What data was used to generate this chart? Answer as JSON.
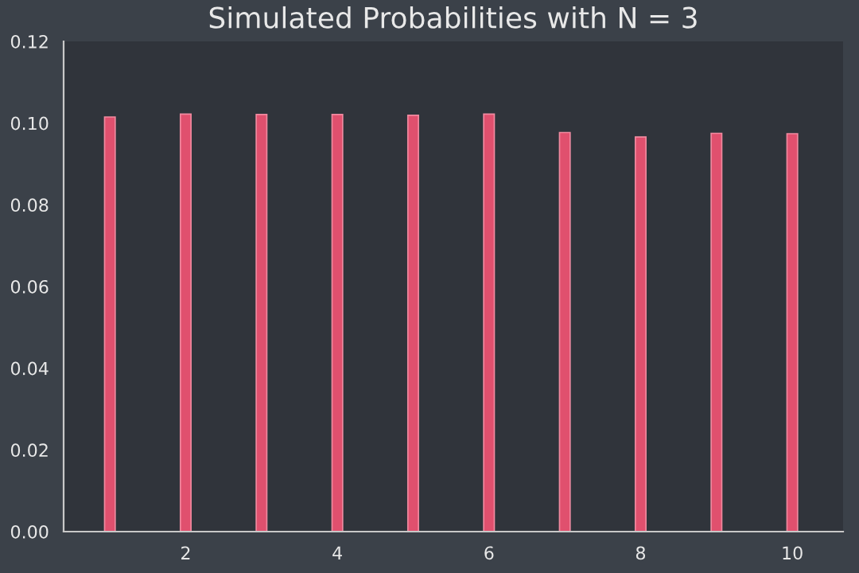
{
  "chart_data": {
    "type": "bar",
    "title": "Simulated Probabilities with N = 3",
    "x": [
      1,
      2,
      3,
      4,
      5,
      6,
      7,
      8,
      9,
      10
    ],
    "series": [
      {
        "color": "#e0506e",
        "values": [
          0.1015,
          0.1022,
          0.1021,
          0.1021,
          0.1019,
          0.1022,
          0.0977,
          0.0966,
          0.0975,
          0.0974
        ]
      }
    ],
    "xlim": [
      0.39,
      10.67
    ],
    "xticks": [
      2,
      4,
      6,
      8,
      10
    ],
    "ylim": [
      0,
      0.12
    ],
    "yticks": [
      {
        "value": 0,
        "label": "0.00"
      },
      {
        "value": 0.02,
        "label": "0.02"
      },
      {
        "value": 0.04,
        "label": "0.04"
      },
      {
        "value": 0.06,
        "label": "0.06"
      },
      {
        "value": 0.08,
        "label": "0.08"
      },
      {
        "value": 0.1,
        "label": "0.10"
      },
      {
        "value": 0.12,
        "label": "0.12"
      }
    ],
    "grid": false,
    "legend": false
  }
}
